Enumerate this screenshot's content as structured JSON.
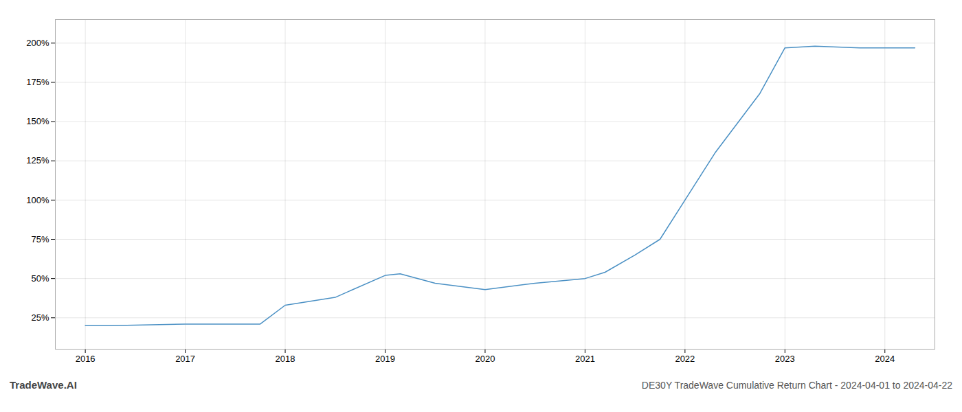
{
  "chart_data": {
    "type": "line",
    "title": "DE30Y TradeWave Cumulative Return Chart - 2024-04-01 to 2024-04-22",
    "annotations": [
      "TradeWave.AI"
    ],
    "x": [
      2016.0,
      2016.25,
      2017.0,
      2017.25,
      2017.75,
      2018.0,
      2018.5,
      2019.0,
      2019.15,
      2019.5,
      2020.0,
      2020.5,
      2021.0,
      2021.2,
      2021.5,
      2021.75,
      2022.0,
      2022.3,
      2022.75,
      2023.0,
      2023.3,
      2023.75,
      2024.0,
      2024.3
    ],
    "values": [
      20,
      20,
      21,
      21,
      21,
      33,
      38,
      52,
      53,
      47,
      43,
      47,
      50,
      54,
      65,
      75,
      100,
      130,
      168,
      197,
      198,
      197,
      197,
      197
    ],
    "color": "#4A90C4",
    "xlim": [
      2015.7,
      2024.5
    ],
    "ylim": [
      5,
      215
    ],
    "xticks": [
      2016,
      2017,
      2018,
      2019,
      2020,
      2021,
      2022,
      2023,
      2024
    ],
    "yticks": [
      {
        "value": 25,
        "label": "25%"
      },
      {
        "value": 50,
        "label": "50%"
      },
      {
        "value": 75,
        "label": "75%"
      },
      {
        "value": 100,
        "label": "100%"
      },
      {
        "value": 125,
        "label": "125%"
      },
      {
        "value": 150,
        "label": "150%"
      },
      {
        "value": 175,
        "label": "175%"
      },
      {
        "value": 200,
        "label": "200%"
      }
    ],
    "grid": true
  }
}
